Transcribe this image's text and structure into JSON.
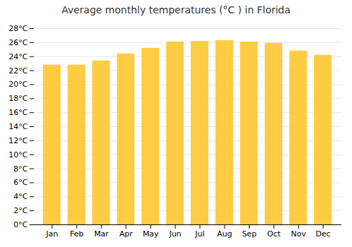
{
  "chart_data": {
    "type": "bar",
    "title": "Average monthly temperatures (°C ) in Florida",
    "categories": [
      "Jan",
      "Feb",
      "Mar",
      "Apr",
      "May",
      "Jun",
      "Jul",
      "Aug",
      "Sep",
      "Oct",
      "Nov",
      "Dec"
    ],
    "values": [
      22.8,
      22.8,
      23.4,
      24.4,
      25.2,
      26.1,
      26.2,
      26.3,
      26.1,
      25.9,
      24.8,
      24.2
    ],
    "color": "#FFCC44",
    "ylim": [
      0,
      28
    ],
    "yticks": [
      {
        "value": 0,
        "label": "0°C"
      },
      {
        "value": 2,
        "label": "2°C"
      },
      {
        "value": 4,
        "label": "4°C"
      },
      {
        "value": 6,
        "label": "6°C"
      },
      {
        "value": 8,
        "label": "8°C"
      },
      {
        "value": 10,
        "label": "10°C"
      },
      {
        "value": 12,
        "label": "12°C"
      },
      {
        "value": 14,
        "label": "14°C"
      },
      {
        "value": 16,
        "label": "16°C"
      },
      {
        "value": 18,
        "label": "18°C"
      },
      {
        "value": 20,
        "label": "20°C"
      },
      {
        "value": 22,
        "label": "22°C"
      },
      {
        "value": 24,
        "label": "24°C"
      },
      {
        "value": 26,
        "label": "26°C"
      },
      {
        "value": 28,
        "label": "28°C"
      }
    ],
    "grid": true
  }
}
